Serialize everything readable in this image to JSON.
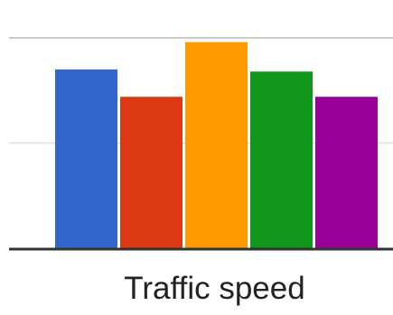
{
  "chart_data": {
    "type": "bar",
    "categories": [
      "Traffic speed"
    ],
    "series": [
      {
        "values": [
          85
        ],
        "color": "#3366cc"
      },
      {
        "values": [
          72
        ],
        "color": "#dc3912"
      },
      {
        "values": [
          98
        ],
        "color": "#ff9900"
      },
      {
        "values": [
          84
        ],
        "color": "#109618"
      },
      {
        "values": [
          72
        ],
        "color": "#990099"
      }
    ],
    "ylim": [
      0,
      100
    ],
    "grid": true,
    "title": "",
    "xlabel": "",
    "ylabel": ""
  }
}
